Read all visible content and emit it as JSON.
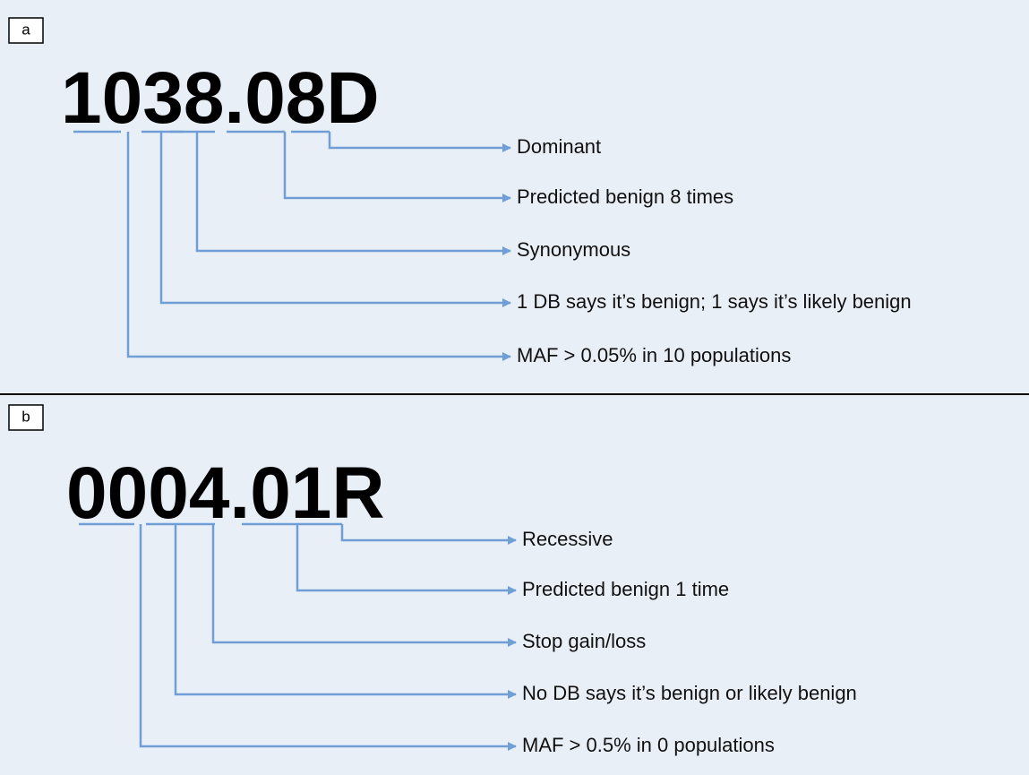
{
  "panels": [
    {
      "label": "a",
      "code": "1038.08D",
      "annotations": [
        "Dominant",
        "Predicted benign 8 times",
        "Synonymous",
        "1 DB says it’s benign; 1 says it’s likely benign",
        "MAF > 0.05% in 10 populations"
      ]
    },
    {
      "label": "b",
      "code": "0004.01R",
      "annotations": [
        "Recessive",
        "Predicted benign 1 time",
        "Stop gain/loss",
        "No DB says it’s benign or likely benign",
        "MAF > 0.5% in 0 populations"
      ]
    }
  ]
}
